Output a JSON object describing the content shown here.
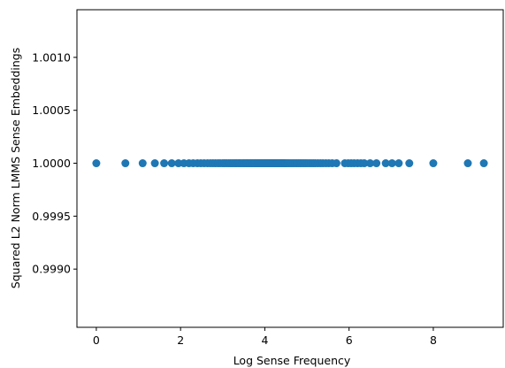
{
  "chart_data": {
    "type": "scatter",
    "title": "",
    "xlabel": "Log Sense Frequency",
    "ylabel": "Squared L2 Norm LMMS Sense Embeddings",
    "xlim": [
      -0.46,
      9.66
    ],
    "ylim": [
      0.99845,
      1.00145
    ],
    "x_ticks": [
      0,
      2,
      4,
      6,
      8
    ],
    "x_tick_labels": [
      "0",
      "2",
      "4",
      "6",
      "8"
    ],
    "y_ticks": [
      0.999,
      0.9995,
      1.0,
      1.0005,
      1.001
    ],
    "y_tick_labels": [
      "0.9990",
      "0.9995",
      "1.0000",
      "1.0005",
      "1.0010"
    ],
    "grid": false,
    "marker_color": "#1f77b4",
    "x": [
      0,
      0.69,
      1.1,
      1.39,
      1.61,
      1.79,
      1.95,
      2.08,
      2.2,
      2.3,
      2.4,
      2.48,
      2.56,
      2.64,
      2.71,
      2.77,
      2.83,
      2.89,
      2.94,
      3.0,
      3.04,
      3.09,
      3.14,
      3.18,
      3.22,
      3.26,
      3.3,
      3.33,
      3.37,
      3.4,
      3.43,
      3.47,
      3.5,
      3.53,
      3.56,
      3.58,
      3.61,
      3.64,
      3.66,
      3.69,
      3.71,
      3.74,
      3.76,
      3.78,
      3.81,
      3.83,
      3.85,
      3.87,
      3.89,
      3.91,
      3.93,
      3.95,
      3.97,
      3.99,
      4.01,
      4.03,
      4.04,
      4.06,
      4.08,
      4.09,
      4.11,
      4.13,
      4.14,
      4.16,
      4.17,
      4.19,
      4.2,
      4.22,
      4.23,
      4.25,
      4.26,
      4.28,
      4.29,
      4.3,
      4.32,
      4.33,
      4.34,
      4.36,
      4.37,
      4.38,
      4.39,
      4.41,
      4.42,
      4.43,
      4.44,
      4.45,
      4.47,
      4.48,
      4.5,
      4.53,
      4.56,
      4.6,
      4.64,
      4.68,
      4.72,
      4.76,
      4.8,
      4.84,
      4.88,
      4.92,
      4.96,
      5.0,
      5.05,
      5.1,
      5.15,
      5.2,
      5.26,
      5.32,
      5.38,
      5.45,
      5.52,
      5.6,
      5.7,
      5.9,
      5.98,
      6.05,
      6.12,
      6.2,
      6.28,
      6.36,
      6.5,
      6.65,
      6.87,
      7.02,
      7.18,
      7.43,
      8.0,
      8.82,
      9.2
    ],
    "y": [
      1.0,
      1.0,
      1.0,
      1.0,
      1.0,
      1.0,
      1.0,
      1.0,
      1.0,
      1.0,
      1.0,
      1.0,
      1.0,
      1.0,
      1.0,
      1.0,
      1.0,
      1.0,
      1.0,
      1.0,
      1.0,
      1.0,
      1.0,
      1.0,
      1.0,
      1.0,
      1.0,
      1.0,
      1.0,
      1.0,
      1.0,
      1.0,
      1.0,
      1.0,
      1.0,
      1.0,
      1.0,
      1.0,
      1.0,
      1.0,
      1.0,
      1.0,
      1.0,
      1.0,
      1.0,
      1.0,
      1.0,
      1.0,
      1.0,
      1.0,
      1.0,
      1.0,
      1.0,
      1.0,
      1.0,
      1.0,
      1.0,
      1.0,
      1.0,
      1.0,
      1.0,
      1.0,
      1.0,
      1.0,
      1.0,
      1.0,
      1.0,
      1.0,
      1.0,
      1.0,
      1.0,
      1.0,
      1.0,
      1.0,
      1.0,
      1.0,
      1.0,
      1.0,
      1.0,
      1.0,
      1.0,
      1.0,
      1.0,
      1.0,
      1.0,
      1.0,
      1.0,
      1.0,
      1.0,
      1.0,
      1.0,
      1.0,
      1.0,
      1.0,
      1.0,
      1.0,
      1.0,
      1.0,
      1.0,
      1.0,
      1.0,
      1.0,
      1.0,
      1.0,
      1.0,
      1.0,
      1.0,
      1.0,
      1.0,
      1.0,
      1.0,
      1.0,
      1.0,
      1.0,
      1.0,
      1.0,
      1.0,
      1.0,
      1.0,
      1.0,
      1.0,
      1.0,
      1.0,
      1.0,
      1.0,
      1.0,
      1.0,
      1.0,
      1.0
    ]
  }
}
